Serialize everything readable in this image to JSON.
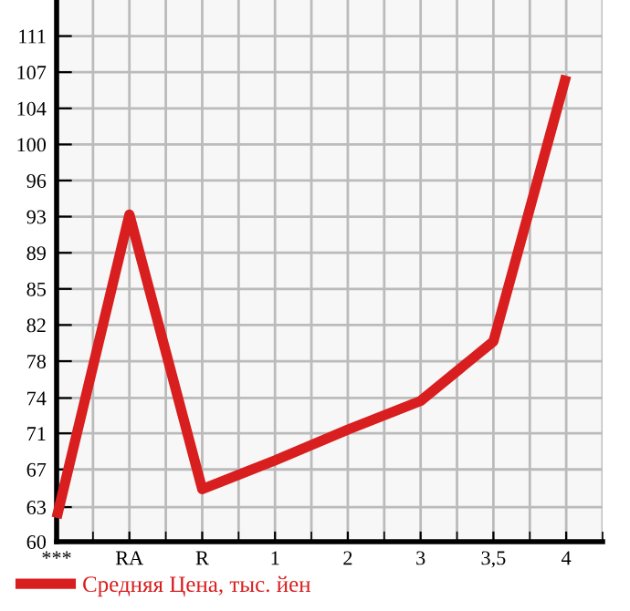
{
  "chart_data": {
    "type": "line",
    "categories": [
      "***",
      "RA",
      "R",
      "1",
      "2",
      "3",
      "3,5",
      "4"
    ],
    "series": [
      {
        "name": "Средняя Цена, тыс. йен",
        "color": "#d81e1e",
        "values": [
          62.4,
          93.0,
          65.3,
          68.2,
          71.3,
          74.2,
          80.2,
          107.0
        ]
      }
    ],
    "ylim": [
      60,
      114.64
    ],
    "yticks": [
      {
        "value": 60,
        "label": "60"
      },
      {
        "value": 63.49,
        "label": "63"
      },
      {
        "value": 67.29,
        "label": "67"
      },
      {
        "value": 70.93,
        "label": "71"
      },
      {
        "value": 74.49,
        "label": "74"
      },
      {
        "value": 78.21,
        "label": "78"
      },
      {
        "value": 81.86,
        "label": "82"
      },
      {
        "value": 85.5,
        "label": "85"
      },
      {
        "value": 89.14,
        "label": "89"
      },
      {
        "value": 92.79,
        "label": "93"
      },
      {
        "value": 96.43,
        "label": "96"
      },
      {
        "value": 100.07,
        "label": "100"
      },
      {
        "value": 103.71,
        "label": "104"
      },
      {
        "value": 107.36,
        "label": "107"
      },
      {
        "value": 111,
        "label": "111"
      }
    ],
    "grid": true,
    "legend": "bottom",
    "marker": "none",
    "line_style": "solid"
  }
}
